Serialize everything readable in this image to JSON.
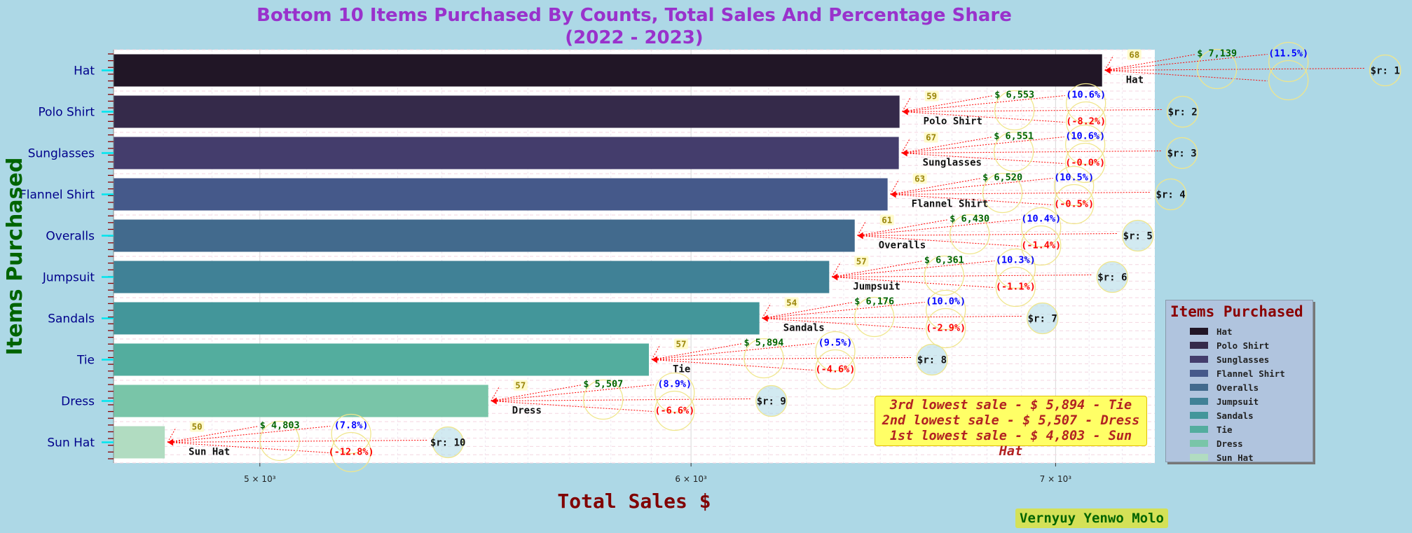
{
  "chart_data": {
    "type": "bar",
    "orientation": "horizontal",
    "title": "Bottom 10 Items Purchased By Counts, Total Sales And Percentage Share",
    "subtitle": "(2022 - 2023)",
    "xlabel": "Total Sales $",
    "ylabel": "Items Purchased",
    "x_scale": "log",
    "xlim": [
      4700,
      7300
    ],
    "x_ticks": [
      5000,
      6000,
      7000
    ],
    "x_tick_labels": [
      "5 × 10³",
      "6 × 10³",
      "7 × 10³"
    ],
    "grid": true,
    "legend_position": "right",
    "legend_title": "Items Purchased",
    "categories": [
      "Hat",
      "Polo Shirt",
      "Sunglasses",
      "Flannel Shirt",
      "Overalls",
      "Jumpsuit",
      "Sandals",
      "Tie",
      "Dress",
      "Sun Hat"
    ],
    "values": [
      7139,
      6553,
      6551,
      6520,
      6430,
      6361,
      6176,
      5894,
      5507,
      4803
    ],
    "value_labels": [
      "$ 7,139",
      "$ 6,553",
      "$ 6,551",
      "$ 6,520",
      "$ 6,430",
      "$ 6,361",
      "$ 6,176",
      "$ 5,894",
      "$ 5,507",
      "$ 4,803"
    ],
    "counts": [
      68,
      59,
      67,
      63,
      61,
      57,
      54,
      57,
      57,
      50
    ],
    "share_labels": [
      "(11.5%)",
      "(10.6%)",
      "(10.6%)",
      "(10.5%)",
      "(10.4%)",
      "(10.3%)",
      "(10.0%)",
      "(9.5%)",
      "(8.9%)",
      "(7.8%)"
    ],
    "change_labels": [
      "",
      "(-8.2%)",
      "(-0.0%)",
      "(-0.5%)",
      "(-1.4%)",
      "(-1.1%)",
      "(-2.9%)",
      "(-4.6%)",
      "(-6.6%)",
      "(-12.8%)"
    ],
    "rank_labels": [
      "$r: 1",
      "$r: 2",
      "$r: 3",
      "$r: 4",
      "$r: 5",
      "$r: 6",
      "$r: 7",
      "$r: 8",
      "$r: 9",
      "$r: 10"
    ],
    "colors": [
      "#211626",
      "#352a4a",
      "#443d6c",
      "#45598a",
      "#426a8d",
      "#408196",
      "#43969a",
      "#53ad9e",
      "#79c5a8",
      "#b1dcc1"
    ]
  },
  "annotation_lines": [
    "3rd lowest sale - $ 5,894 - Tie",
    "2nd lowest sale - $ 5,507 - Dress",
    "1st lowest sale - $ 4,803 - Sun Hat"
  ],
  "author": "Vernyuy Yenwo Molo"
}
